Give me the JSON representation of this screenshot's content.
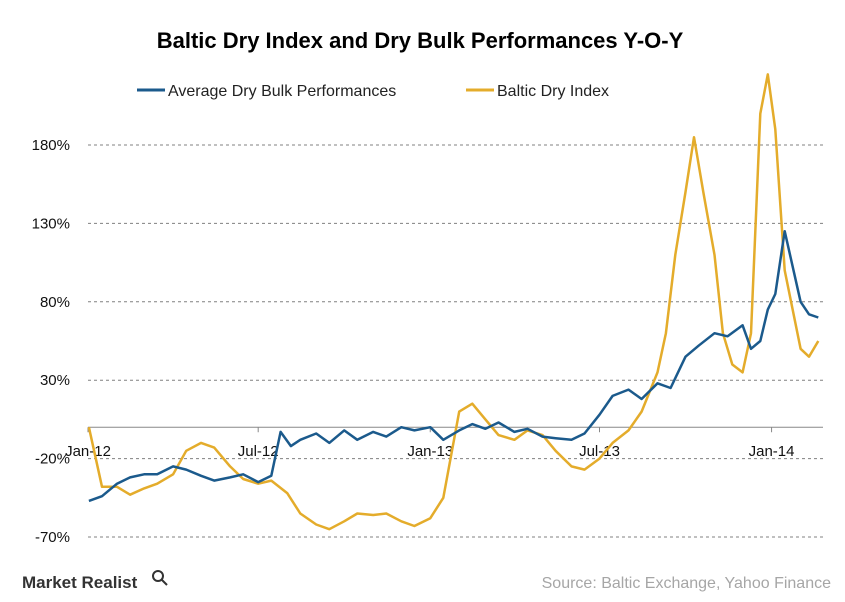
{
  "chart_data": {
    "type": "line",
    "title": "Baltic Dry Index and Dry Bulk Performances Y-O-Y",
    "xlabel": "",
    "ylabel": "",
    "ylim": [
      -70,
      220
    ],
    "y_ticks": [
      "180%",
      "130%",
      "80%",
      "30%",
      "-20%",
      "-70%"
    ],
    "y_tick_values": [
      180,
      130,
      80,
      30,
      -20,
      -70
    ],
    "x_ticks": [
      "Jan-12",
      "Jul-12",
      "Jan-13",
      "Jul-13",
      "Jan-14"
    ],
    "grid": true,
    "legend_position": "top",
    "colors": {
      "dry_bulk": "#1b5a8c",
      "bdi": "#e4ac2b"
    },
    "series": [
      {
        "name": "Average Dry Bulk Performances",
        "x": [
          "2012-01-02",
          "2012-01-16",
          "2012-02-01",
          "2012-02-15",
          "2012-03-01",
          "2012-03-15",
          "2012-04-01",
          "2012-04-15",
          "2012-05-01",
          "2012-05-15",
          "2012-06-01",
          "2012-06-15",
          "2012-07-01",
          "2012-07-15",
          "2012-07-25",
          "2012-08-05",
          "2012-08-15",
          "2012-09-01",
          "2012-09-15",
          "2012-10-01",
          "2012-10-15",
          "2012-11-01",
          "2012-11-15",
          "2012-12-01",
          "2012-12-15",
          "2013-01-01",
          "2013-01-15",
          "2013-02-01",
          "2013-02-15",
          "2013-03-01",
          "2013-03-15",
          "2013-04-01",
          "2013-04-15",
          "2013-05-01",
          "2013-05-15",
          "2013-06-01",
          "2013-06-15",
          "2013-07-01",
          "2013-07-15",
          "2013-08-01",
          "2013-08-15",
          "2013-09-01",
          "2013-09-15",
          "2013-10-01",
          "2013-10-15",
          "2013-11-01",
          "2013-11-15",
          "2013-12-01",
          "2013-12-10",
          "2013-12-20",
          "2013-12-28",
          "2014-01-05",
          "2014-01-15",
          "2014-02-01",
          "2014-02-10",
          "2014-02-20"
        ],
        "values": [
          -47,
          -44,
          -36,
          -32,
          -30,
          -30,
          -25,
          -27,
          -31,
          -34,
          -32,
          -30,
          -35,
          -31,
          -3,
          -12,
          -8,
          -4,
          -10,
          -2,
          -8,
          -3,
          -6,
          0,
          -2,
          0,
          -8,
          -2,
          2,
          -1,
          3,
          -3,
          -1,
          -6,
          -7,
          -8,
          -4,
          8,
          20,
          24,
          18,
          28,
          25,
          45,
          52,
          60,
          58,
          65,
          50,
          55,
          75,
          85,
          125,
          80,
          72,
          70
        ]
      },
      {
        "name": "Baltic Dry Index",
        "x": [
          "2012-01-02",
          "2012-01-16",
          "2012-02-01",
          "2012-02-15",
          "2012-03-01",
          "2012-03-15",
          "2012-04-01",
          "2012-04-15",
          "2012-05-01",
          "2012-05-15",
          "2012-06-01",
          "2012-06-15",
          "2012-07-01",
          "2012-07-15",
          "2012-08-01",
          "2012-08-15",
          "2012-09-01",
          "2012-09-15",
          "2012-10-01",
          "2012-10-15",
          "2012-11-01",
          "2012-11-15",
          "2012-12-01",
          "2012-12-15",
          "2013-01-01",
          "2013-01-15",
          "2013-02-01",
          "2013-02-15",
          "2013-03-01",
          "2013-03-15",
          "2013-04-01",
          "2013-04-15",
          "2013-05-01",
          "2013-05-15",
          "2013-06-01",
          "2013-06-15",
          "2013-07-01",
          "2013-07-15",
          "2013-08-01",
          "2013-08-15",
          "2013-09-01",
          "2013-09-10",
          "2013-09-20",
          "2013-10-01",
          "2013-10-10",
          "2013-10-20",
          "2013-11-01",
          "2013-11-10",
          "2013-11-20",
          "2013-12-01",
          "2013-12-10",
          "2013-12-20",
          "2013-12-28",
          "2014-01-05",
          "2014-01-15",
          "2014-02-01",
          "2014-02-10",
          "2014-02-20"
        ],
        "values": [
          0,
          -38,
          -38,
          -43,
          -39,
          -36,
          -30,
          -15,
          -10,
          -13,
          -25,
          -33,
          -36,
          -34,
          -42,
          -55,
          -62,
          -65,
          -60,
          -55,
          -56,
          -55,
          -60,
          -63,
          -58,
          -45,
          10,
          15,
          5,
          -5,
          -8,
          -2,
          -5,
          -15,
          -25,
          -27,
          -20,
          -10,
          -2,
          10,
          35,
          60,
          110,
          150,
          185,
          150,
          110,
          60,
          40,
          35,
          60,
          200,
          225,
          190,
          100,
          50,
          45,
          55
        ]
      }
    ],
    "source": "Source: Baltic Exchange, Yahoo Finance",
    "brand": "Market Realist"
  }
}
